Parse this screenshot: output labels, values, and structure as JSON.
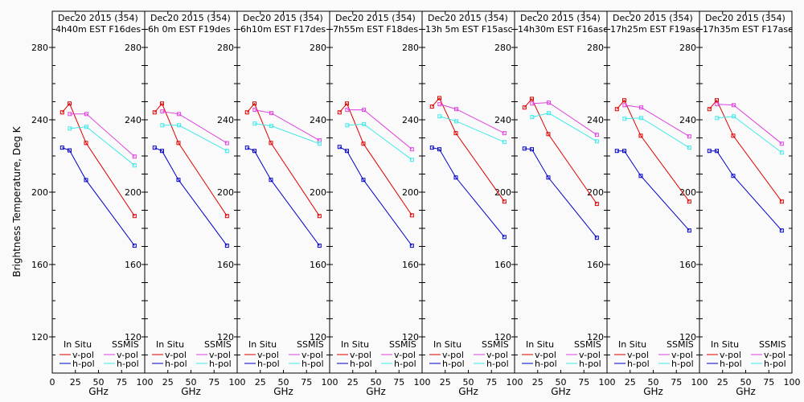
{
  "chart_data": {
    "type": "line",
    "ylabel": "Brightness Temperature, Deg K",
    "ylim": [
      100,
      300
    ],
    "yticks": [
      120,
      160,
      200,
      240,
      280
    ],
    "xlim": [
      0,
      100
    ],
    "xticks": [
      0,
      25,
      50,
      75,
      100
    ],
    "xlabel": "GHz",
    "legend": {
      "placement": "bottom",
      "group_titles": [
        "In Situ",
        "SSMIS"
      ],
      "entries": [
        {
          "group": "In Situ",
          "name": "v-pol",
          "color": "#e00000"
        },
        {
          "group": "In Situ",
          "name": "h-pol",
          "color": "#0000c8"
        },
        {
          "group": "SSMIS",
          "name": "v-pol",
          "color": "#e040e0"
        },
        {
          "group": "SSMIS",
          "name": "h-pol",
          "color": "#40e8e8"
        }
      ]
    },
    "panels": [
      {
        "title_line1": "Dec20 2015 (354)",
        "title_line2": "4h40m EST F16des",
        "series": [
          {
            "name": "In Situ v-pol",
            "color": "#e00000",
            "x": [
              10.7,
              18.7,
              36.5,
              89
            ],
            "y": [
              244.1,
              249.0,
              227.2,
              186.8
            ]
          },
          {
            "name": "In Situ h-pol",
            "color": "#0000c8",
            "x": [
              10.7,
              18.7,
              36.5,
              89
            ],
            "y": [
              224.6,
              223.1,
              206.7,
              170.4
            ]
          },
          {
            "name": "SSMIS v-pol",
            "color": "#e040e0",
            "x": [
              19,
              37,
              89
            ],
            "y": [
              243.2,
              243.2,
              219.7
            ]
          },
          {
            "name": "SSMIS h-pol",
            "color": "#40e8e8",
            "x": [
              19,
              37,
              89
            ],
            "y": [
              235.2,
              236.1,
              214.8
            ]
          }
        ]
      },
      {
        "title_line1": "Dec20 2015 (354)",
        "title_line2": "6h 0m  EST F19des",
        "series": [
          {
            "name": "In Situ v-pol",
            "color": "#e00000",
            "x": [
              10.7,
              18.7,
              36.5,
              89
            ],
            "y": [
              244.1,
              249.0,
              227.2,
              186.8
            ]
          },
          {
            "name": "In Situ h-pol",
            "color": "#0000c8",
            "x": [
              10.7,
              18.7,
              36.5,
              89
            ],
            "y": [
              224.6,
              222.8,
              206.8,
              170.4
            ]
          },
          {
            "name": "SSMIS v-pol",
            "color": "#e040e0",
            "x": [
              19,
              37,
              89
            ],
            "y": [
              244.6,
              243.2,
              227.1
            ]
          },
          {
            "name": "SSMIS h-pol",
            "color": "#40e8e8",
            "x": [
              19,
              37,
              89
            ],
            "y": [
              237.0,
              237.0,
              222.8
            ]
          }
        ]
      },
      {
        "title_line1": "Dec20 2015 (354)",
        "title_line2": "6h10m EST F17des",
        "series": [
          {
            "name": "In Situ v-pol",
            "color": "#e00000",
            "x": [
              10.7,
              18.7,
              36.5,
              89
            ],
            "y": [
              244.1,
              249.0,
              227.2,
              186.8
            ]
          },
          {
            "name": "In Situ h-pol",
            "color": "#0000c8",
            "x": [
              10.7,
              18.7,
              36.5,
              89
            ],
            "y": [
              224.6,
              222.8,
              206.8,
              170.4
            ]
          },
          {
            "name": "SSMIS v-pol",
            "color": "#e040e0",
            "x": [
              19,
              37,
              89
            ],
            "y": [
              245.5,
              243.7,
              228.6
            ]
          },
          {
            "name": "SSMIS h-pol",
            "color": "#40e8e8",
            "x": [
              19,
              37,
              89
            ],
            "y": [
              237.9,
              236.6,
              226.8
            ]
          }
        ]
      },
      {
        "title_line1": "Dec20 2015 (354)",
        "title_line2": "7h55m EST F18des",
        "series": [
          {
            "name": "In Situ v-pol",
            "color": "#e00000",
            "x": [
              10.7,
              18.7,
              36.5,
              89
            ],
            "y": [
              244.1,
              249.0,
              226.8,
              187.2
            ]
          },
          {
            "name": "In Situ h-pol",
            "color": "#0000c8",
            "x": [
              10.7,
              18.7,
              36.5,
              89
            ],
            "y": [
              225.0,
              222.8,
              206.8,
              170.4
            ]
          },
          {
            "name": "SSMIS v-pol",
            "color": "#e040e0",
            "x": [
              19,
              37,
              89
            ],
            "y": [
              245.5,
              245.5,
              223.7
            ]
          },
          {
            "name": "SSMIS h-pol",
            "color": "#40e8e8",
            "x": [
              19,
              37,
              89
            ],
            "y": [
              237.0,
              237.6,
              217.9
            ]
          }
        ]
      },
      {
        "title_line1": "Dec20 2015 (354)",
        "title_line2": "13h 5m EST F15asc",
        "series": [
          {
            "name": "In Situ v-pol",
            "color": "#e00000",
            "x": [
              10.7,
              18.7,
              36.5,
              89
            ],
            "y": [
              247.3,
              252.0,
              232.6,
              194.8
            ]
          },
          {
            "name": "In Situ h-pol",
            "color": "#0000c8",
            "x": [
              10.7,
              18.7,
              36.5,
              89
            ],
            "y": [
              224.6,
              223.7,
              208.1,
              175.2
            ]
          },
          {
            "name": "SSMIS v-pol",
            "color": "#e040e0",
            "x": [
              19,
              37,
              89
            ],
            "y": [
              248.6,
              245.9,
              232.6
            ]
          },
          {
            "name": "SSMIS h-pol",
            "color": "#40e8e8",
            "x": [
              19,
              37,
              89
            ],
            "y": [
              241.9,
              239.2,
              227.7
            ]
          }
        ]
      },
      {
        "title_line1": "Dec20 2015 (354)",
        "title_line2": "14h30m EST F16asc",
        "series": [
          {
            "name": "In Situ v-pol",
            "color": "#e00000",
            "x": [
              10.7,
              18.7,
              36.5,
              89
            ],
            "y": [
              246.8,
              251.6,
              232.1,
              193.5
            ]
          },
          {
            "name": "In Situ h-pol",
            "color": "#0000c8",
            "x": [
              10.7,
              18.7,
              36.5,
              89
            ],
            "y": [
              224.1,
              223.7,
              208.1,
              174.8
            ]
          },
          {
            "name": "SSMIS v-pol",
            "color": "#e040e0",
            "x": [
              19,
              37,
              89
            ],
            "y": [
              249.0,
              249.5,
              231.7
            ]
          },
          {
            "name": "SSMIS h-pol",
            "color": "#40e8e8",
            "x": [
              19,
              37,
              89
            ],
            "y": [
              241.5,
              243.7,
              228.1
            ]
          }
        ]
      },
      {
        "title_line1": "Dec20 2015 (354)",
        "title_line2": "17h25m EST F19asc",
        "series": [
          {
            "name": "In Situ v-pol",
            "color": "#e00000",
            "x": [
              10.7,
              18.7,
              36.5,
              89
            ],
            "y": [
              245.9,
              250.8,
              231.2,
              194.8
            ]
          },
          {
            "name": "In Situ h-pol",
            "color": "#0000c8",
            "x": [
              10.7,
              18.7,
              36.5,
              89
            ],
            "y": [
              222.8,
              222.8,
              209.0,
              178.8
            ]
          },
          {
            "name": "SSMIS v-pol",
            "color": "#e040e0",
            "x": [
              19,
              37,
              89
            ],
            "y": [
              248.1,
              246.8,
              230.8
            ]
          },
          {
            "name": "SSMIS h-pol",
            "color": "#40e8e8",
            "x": [
              19,
              37,
              89
            ],
            "y": [
              240.6,
              241.0,
              224.6
            ]
          }
        ]
      },
      {
        "title_line1": "Dec20 2015 (354)",
        "title_line2": "17h35m EST F17asc",
        "series": [
          {
            "name": "In Situ v-pol",
            "color": "#e00000",
            "x": [
              10.7,
              18.7,
              36.5,
              89
            ],
            "y": [
              245.9,
              250.8,
              231.2,
              194.8
            ]
          },
          {
            "name": "In Situ h-pol",
            "color": "#0000c8",
            "x": [
              10.7,
              18.7,
              36.5,
              89
            ],
            "y": [
              222.8,
              222.8,
              209.0,
              178.8
            ]
          },
          {
            "name": "SSMIS v-pol",
            "color": "#e040e0",
            "x": [
              19,
              37,
              89
            ],
            "y": [
              248.6,
              248.1,
              226.8
            ]
          },
          {
            "name": "SSMIS h-pol",
            "color": "#40e8e8",
            "x": [
              19,
              37,
              89
            ],
            "y": [
              241.0,
              241.9,
              221.9
            ]
          }
        ]
      }
    ]
  }
}
